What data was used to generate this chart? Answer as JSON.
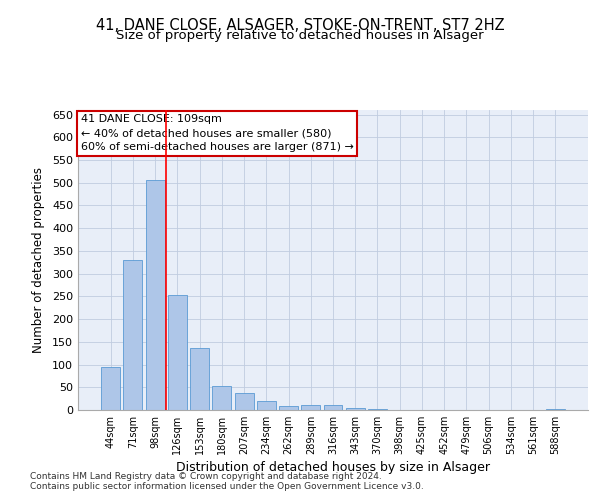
{
  "title1": "41, DANE CLOSE, ALSAGER, STOKE-ON-TRENT, ST7 2HZ",
  "title2": "Size of property relative to detached houses in Alsager",
  "xlabel": "Distribution of detached houses by size in Alsager",
  "ylabel": "Number of detached properties",
  "categories": [
    "44sqm",
    "71sqm",
    "98sqm",
    "126sqm",
    "153sqm",
    "180sqm",
    "207sqm",
    "234sqm",
    "262sqm",
    "289sqm",
    "316sqm",
    "343sqm",
    "370sqm",
    "398sqm",
    "425sqm",
    "452sqm",
    "479sqm",
    "506sqm",
    "534sqm",
    "561sqm",
    "588sqm"
  ],
  "values": [
    95,
    330,
    505,
    253,
    137,
    53,
    37,
    20,
    8,
    10,
    10,
    5,
    2,
    1,
    1,
    0,
    0,
    0,
    0,
    0,
    3
  ],
  "bar_color": "#aec6e8",
  "bar_edge_color": "#5a9ad4",
  "red_line_x": 2.5,
  "annotation_text": "41 DANE CLOSE: 109sqm\n← 40% of detached houses are smaller (580)\n60% of semi-detached houses are larger (871) →",
  "annotation_box_color": "#ffffff",
  "annotation_box_edge": "#cc0000",
  "ylim": [
    0,
    660
  ],
  "yticks": [
    0,
    50,
    100,
    150,
    200,
    250,
    300,
    350,
    400,
    450,
    500,
    550,
    600,
    650
  ],
  "footer1": "Contains HM Land Registry data © Crown copyright and database right 2024.",
  "footer2": "Contains public sector information licensed under the Open Government Licence v3.0.",
  "bg_color": "#e8eef8",
  "title_fontsize": 10.5,
  "subtitle_fontsize": 9.5
}
